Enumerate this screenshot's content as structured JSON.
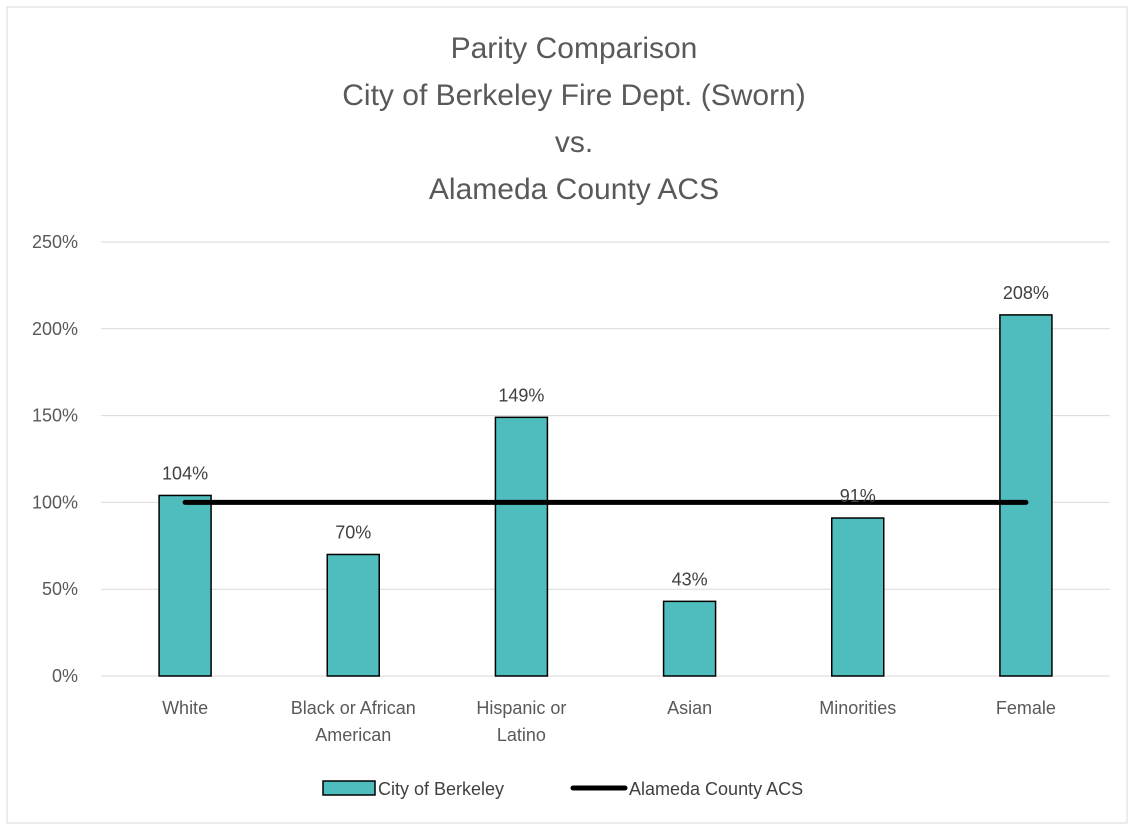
{
  "chart_data": {
    "type": "bar",
    "title_lines": [
      "Parity Comparison",
      "City of Berkeley Fire Dept. (Sworn)",
      "vs.",
      "Alameda County ACS"
    ],
    "categories": [
      [
        "White"
      ],
      [
        "Black or African",
        "American"
      ],
      [
        "Hispanic or",
        "Latino"
      ],
      [
        "Asian"
      ],
      [
        "Minorities"
      ],
      [
        "Female"
      ]
    ],
    "series": [
      {
        "name": "City of Berkeley",
        "kind": "bar",
        "color": "#4fbdbd",
        "values": [
          104,
          70,
          149,
          43,
          91,
          208
        ],
        "labels": [
          "104%",
          "70%",
          "149%",
          "43%",
          "91%",
          "208%"
        ]
      },
      {
        "name": "Alameda County ACS",
        "kind": "line",
        "color": "#000000",
        "values": [
          100,
          100,
          100,
          100,
          100,
          100
        ]
      }
    ],
    "ylim": [
      0,
      250
    ],
    "yticks": [
      0,
      50,
      100,
      150,
      200,
      250
    ],
    "ytick_labels": [
      "0%",
      "50%",
      "100%",
      "150%",
      "200%",
      "250%"
    ],
    "grid": true,
    "legend_position": "bottom"
  }
}
